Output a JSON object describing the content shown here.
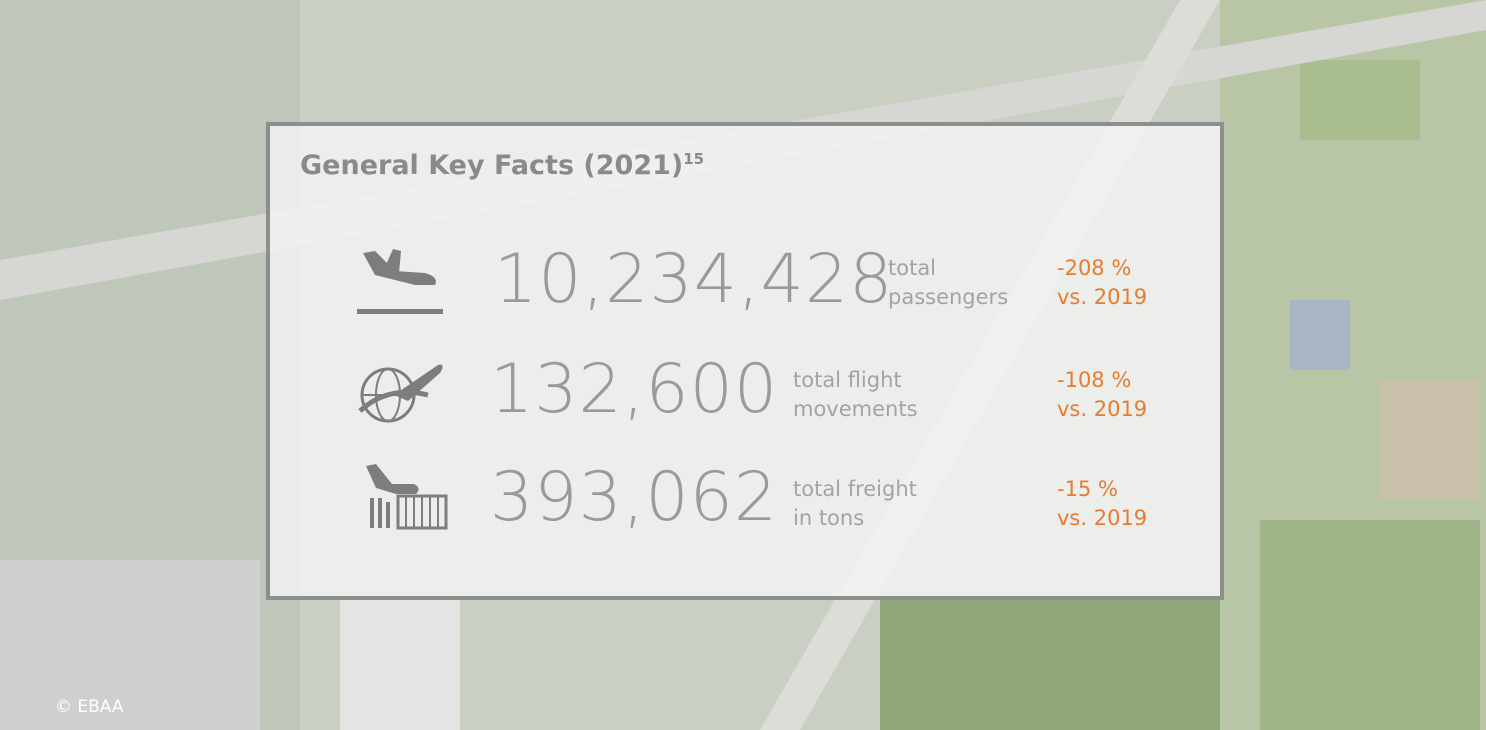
{
  "header": {
    "title": "General Key Facts (2021)",
    "footnote": "15"
  },
  "facts": [
    {
      "value": "10,234,428",
      "label": [
        "total",
        "passengers"
      ],
      "change": [
        "-208 %",
        "vs. 2019"
      ]
    },
    {
      "value": "132,600",
      "label": [
        "total flight",
        "movements"
      ],
      "change": [
        "-108 %",
        "vs. 2019"
      ]
    },
    {
      "value": "393,062",
      "label": [
        "total freight",
        "in tons"
      ],
      "change": [
        "-15 %",
        "vs. 2019"
      ]
    }
  ],
  "credit": "© EBAA"
}
